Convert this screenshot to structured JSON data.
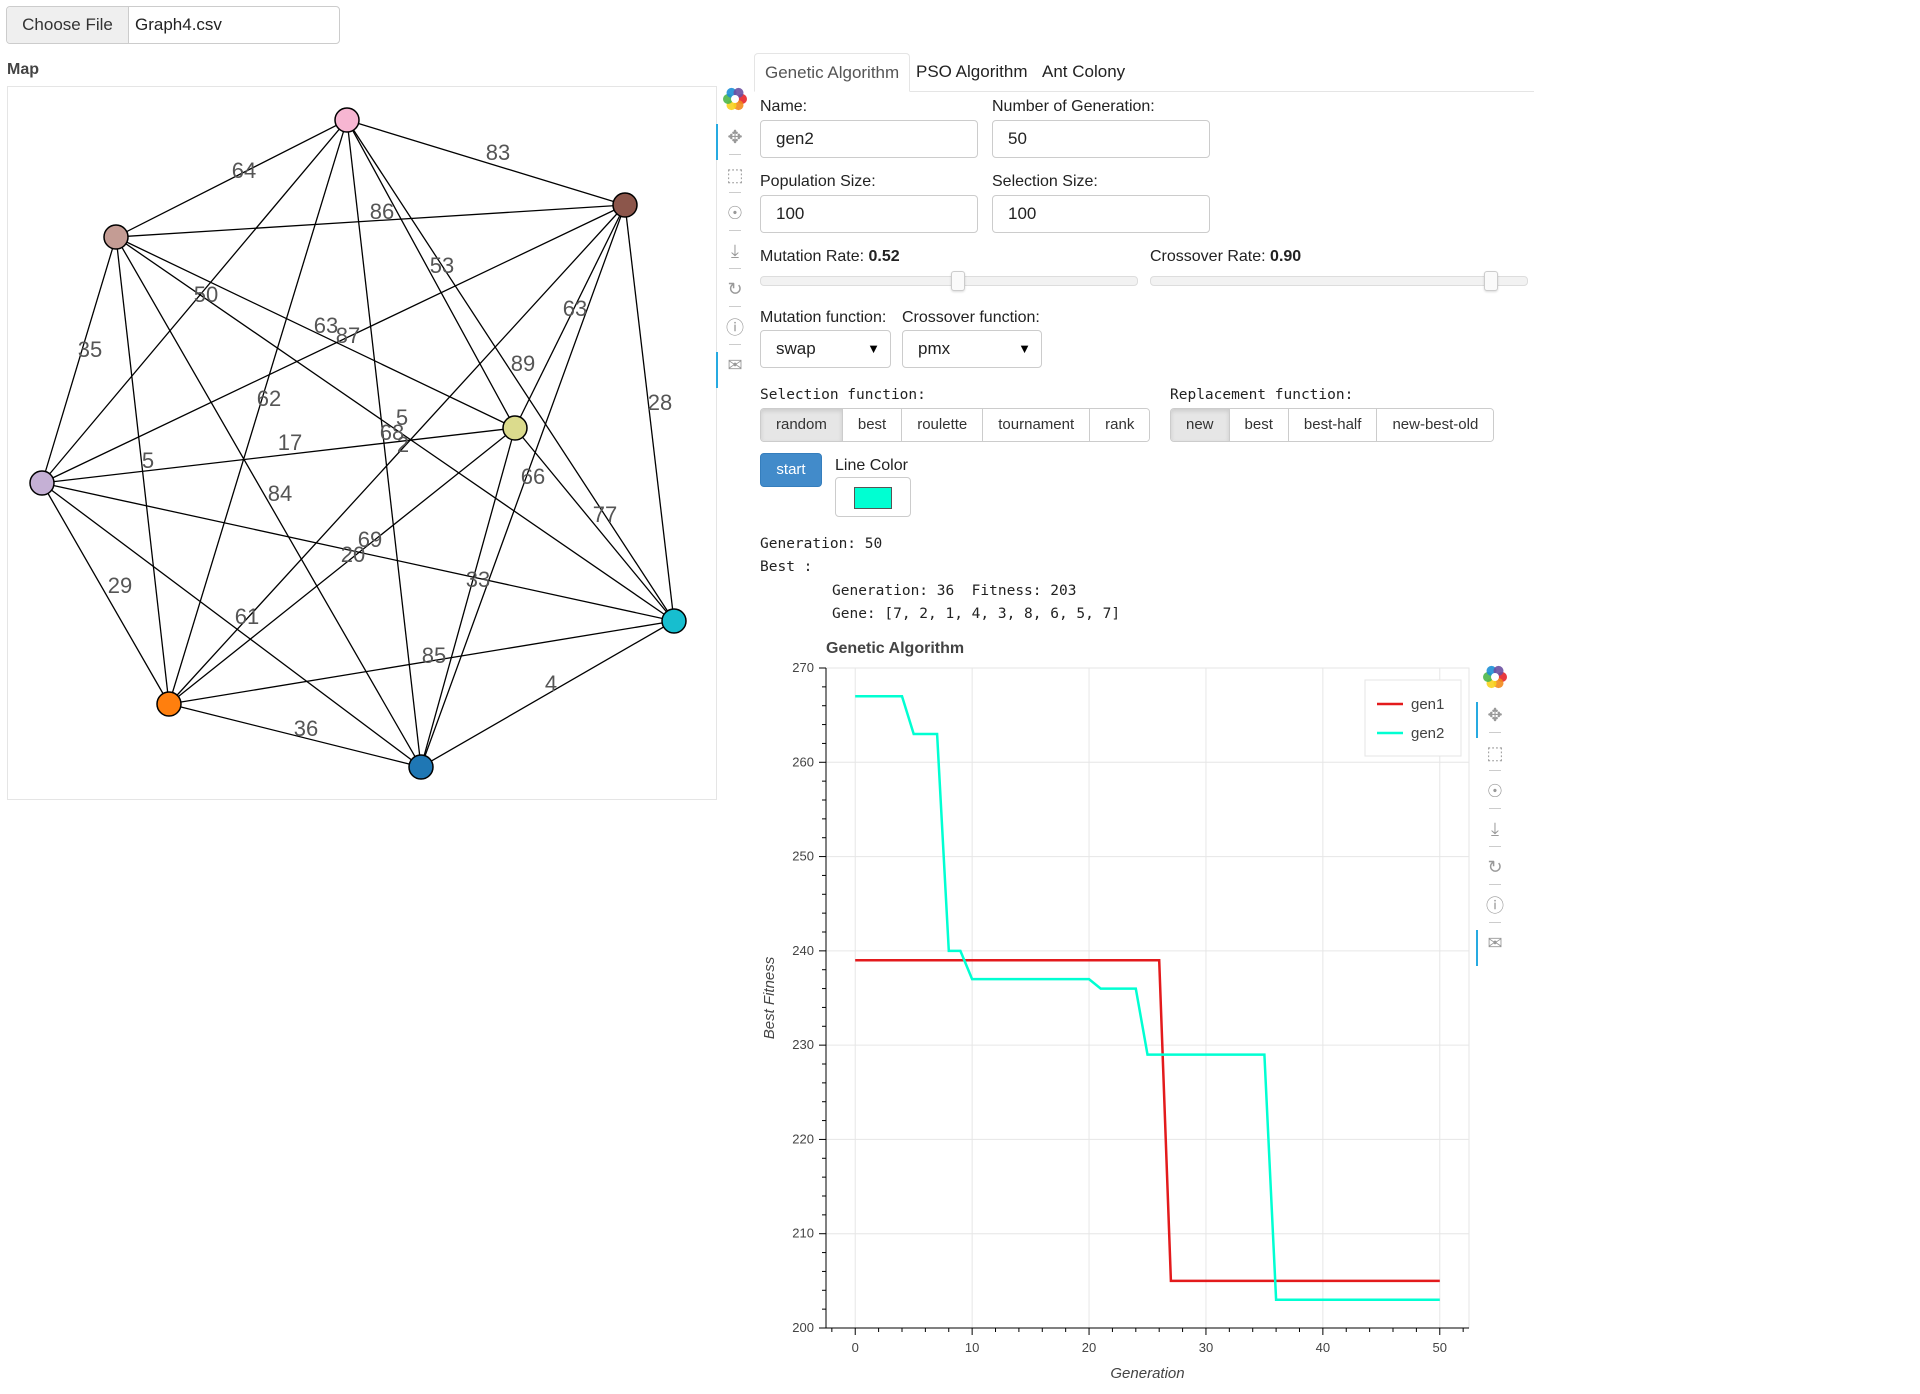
{
  "file_input": {
    "button_label": "Choose File",
    "file_name": "Graph4.csv"
  },
  "map": {
    "title": "Map",
    "nodes": [
      {
        "id": "pink",
        "color": "#f7b6d2"
      },
      {
        "id": "brown",
        "color": "#8c564b"
      },
      {
        "id": "tan",
        "color": "#c49c94"
      },
      {
        "id": "lavender",
        "color": "#c5b0d5"
      },
      {
        "id": "olive",
        "color": "#dbdb8d"
      },
      {
        "id": "cyan",
        "color": "#17becf"
      },
      {
        "id": "orange",
        "color": "#ff7f0e"
      },
      {
        "id": "blue",
        "color": "#1f77b4"
      }
    ],
    "edge_labels": [
      "64",
      "83",
      "86",
      "53",
      "50",
      "63",
      "87",
      "35",
      "62",
      "5",
      "68",
      "2",
      "89",
      "63",
      "28",
      "17",
      "5",
      "84",
      "66",
      "77",
      "69",
      "20",
      "33",
      "29",
      "61",
      "85",
      "4",
      "36"
    ]
  },
  "tabs": [
    {
      "label": "Genetic Algorithm"
    },
    {
      "label": "PSO Algorithm"
    },
    {
      "label": "Ant Colony"
    }
  ],
  "form": {
    "name_label": "Name:",
    "name_value": "gen2",
    "generations_label": "Number of Generation:",
    "generations_value": "50",
    "population_label": "Population Size:",
    "population_value": "100",
    "selection_size_label": "Selection Size:",
    "selection_size_value": "100",
    "mutation_rate_label": "Mutation Rate: ",
    "mutation_rate_value": "0.52",
    "mutation_rate_fraction": 0.52,
    "crossover_rate_label": "Crossover Rate: ",
    "crossover_rate_value": "0.90",
    "crossover_rate_fraction": 0.9,
    "mutation_fn_label": "Mutation function:",
    "mutation_fn_value": "swap",
    "crossover_fn_label": "Crossover function:",
    "crossover_fn_value": "pmx",
    "selection_fn_label": "Selection function:",
    "selection_options": [
      "random",
      "best",
      "roulette",
      "tournament",
      "rank"
    ],
    "selection_active": "random",
    "replacement_fn_label": "Replacement function:",
    "replacement_options": [
      "new",
      "best",
      "best-half",
      "new-best-old"
    ],
    "replacement_active": "new",
    "start_label": "start",
    "line_color_label": "Line Color",
    "line_color": "#00ffd2"
  },
  "results": {
    "generation_line": "Generation: 50",
    "best_label": "Best :",
    "best_generation_line": "Generation: 36  Fitness: 203",
    "gene_line": "Gene: [7, 2, 1, 4, 3, 8, 6, 5, 7]"
  },
  "icons": {
    "logo": "bokeh-logo-icon",
    "tools": [
      "pan-icon",
      "box-zoom-icon",
      "wheel-zoom-icon",
      "save-icon",
      "reset-icon",
      "help-icon",
      "hover-icon"
    ]
  },
  "chart_data": {
    "type": "line",
    "title": "Genetic Algorithm",
    "xlabel": "Generation",
    "ylabel": "Best Fitness",
    "xlim": [
      -2.5,
      52.5
    ],
    "ylim": [
      200,
      270
    ],
    "xticks": [
      0,
      10,
      20,
      30,
      40,
      50
    ],
    "yticks": [
      200,
      210,
      220,
      230,
      240,
      250,
      260,
      270
    ],
    "grid": true,
    "legend_position": "top-right",
    "series": [
      {
        "name": "gen1",
        "color": "#e31a1c",
        "x": [
          0,
          26,
          27,
          50
        ],
        "y": [
          239,
          239,
          205,
          205
        ]
      },
      {
        "name": "gen2",
        "color": "#00ffd2",
        "x": [
          0,
          4,
          5,
          7,
          8,
          9,
          10,
          20,
          21,
          24,
          25,
          35,
          36,
          50
        ],
        "y": [
          267,
          267,
          263,
          263,
          240,
          240,
          237,
          237,
          236,
          236,
          229,
          229,
          203,
          203
        ]
      }
    ]
  }
}
